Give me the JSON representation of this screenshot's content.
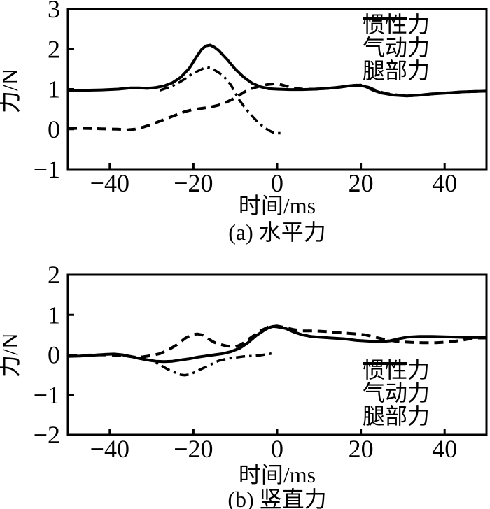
{
  "figure": {
    "line_color": "#000000",
    "background": "#ffffff",
    "ylabel": "力/N",
    "xlabel": "时间/ms"
  },
  "legend_styles": {
    "solid": {
      "dash": "",
      "width": 4
    },
    "dashed": {
      "dash": "13 8",
      "width": 4
    },
    "dashdot": {
      "dash": "13 6 3.5 6",
      "width": 3.5
    }
  },
  "chart_data": [
    {
      "type": "line",
      "title": "(a) 水平力",
      "xlabel": "时间/ms",
      "ylabel": "力/N",
      "xlim": [
        -50,
        50
      ],
      "ylim": [
        -1,
        3
      ],
      "xticks": [
        -40,
        -20,
        0,
        20,
        40
      ],
      "yticks": [
        -1,
        0,
        1,
        2,
        3
      ],
      "grid": false,
      "legend_position": "top-right",
      "series": [
        {
          "name": "惯性力",
          "style": "solid",
          "points": [
            [
              -50,
              0.97
            ],
            [
              -46,
              0.97
            ],
            [
              -42,
              0.98
            ],
            [
              -38,
              1.0
            ],
            [
              -35,
              1.03
            ],
            [
              -33,
              1.03
            ],
            [
              -31,
              1.02
            ],
            [
              -29,
              1.04
            ],
            [
              -27,
              1.08
            ],
            [
              -25,
              1.16
            ],
            [
              -23,
              1.3
            ],
            [
              -21,
              1.52
            ],
            [
              -19,
              1.85
            ],
            [
              -18,
              2.0
            ],
            [
              -17,
              2.08
            ],
            [
              -16,
              2.1
            ],
            [
              -15,
              2.05
            ],
            [
              -14,
              1.97
            ],
            [
              -12,
              1.75
            ],
            [
              -10,
              1.5
            ],
            [
              -8,
              1.3
            ],
            [
              -6,
              1.15
            ],
            [
              -4,
              1.06
            ],
            [
              -2,
              1.01
            ],
            [
              0,
              1.0
            ],
            [
              3,
              0.99
            ],
            [
              6,
              0.99
            ],
            [
              9,
              1.0
            ],
            [
              12,
              1.02
            ],
            [
              15,
              1.05
            ],
            [
              17,
              1.08
            ],
            [
              19,
              1.1
            ],
            [
              21,
              1.07
            ],
            [
              23,
              0.97
            ],
            [
              25,
              0.9
            ],
            [
              28,
              0.85
            ],
            [
              31,
              0.83
            ],
            [
              34,
              0.85
            ],
            [
              37,
              0.88
            ],
            [
              40,
              0.9
            ],
            [
              44,
              0.93
            ],
            [
              47,
              0.94
            ],
            [
              50,
              0.95
            ]
          ]
        },
        {
          "name": "气动力",
          "style": "dashed",
          "points": [
            [
              -50,
              0.02
            ],
            [
              -46,
              0.02
            ],
            [
              -42,
              0.01
            ],
            [
              -38,
              0.0
            ],
            [
              -36,
              -0.02
            ],
            [
              -34,
              0.0
            ],
            [
              -32,
              0.05
            ],
            [
              -30,
              0.12
            ],
            [
              -28,
              0.2
            ],
            [
              -26,
              0.28
            ],
            [
              -24,
              0.36
            ],
            [
              -22,
              0.44
            ],
            [
              -20,
              0.49
            ],
            [
              -18,
              0.52
            ],
            [
              -16,
              0.55
            ],
            [
              -14,
              0.6
            ],
            [
              -12,
              0.68
            ],
            [
              -10,
              0.78
            ],
            [
              -8,
              0.92
            ],
            [
              -6,
              1.02
            ],
            [
              -4,
              1.08
            ],
            [
              -2,
              1.12
            ],
            [
              0,
              1.14
            ],
            [
              2,
              1.08
            ],
            [
              4,
              1.03
            ],
            [
              6,
              1.0
            ],
            [
              9,
              1.0
            ],
            [
              12,
              1.02
            ],
            [
              15,
              1.05
            ],
            [
              18,
              1.09
            ],
            [
              20,
              1.1
            ],
            [
              22,
              1.04
            ],
            [
              24,
              0.95
            ],
            [
              26,
              0.89
            ],
            [
              29,
              0.85
            ],
            [
              32,
              0.84
            ],
            [
              35,
              0.86
            ],
            [
              38,
              0.89
            ],
            [
              41,
              0.91
            ],
            [
              44,
              0.93
            ],
            [
              47,
              0.94
            ],
            [
              50,
              0.95
            ]
          ]
        },
        {
          "name": "腿部力",
          "style": "dashdot",
          "points": [
            [
              -28,
              0.97
            ],
            [
              -26,
              1.04
            ],
            [
              -24,
              1.13
            ],
            [
              -22,
              1.26
            ],
            [
              -20,
              1.4
            ],
            [
              -18,
              1.5
            ],
            [
              -17,
              1.55
            ],
            [
              -16,
              1.53
            ],
            [
              -15,
              1.48
            ],
            [
              -13,
              1.35
            ],
            [
              -11,
              1.1
            ],
            [
              -10,
              0.9
            ],
            [
              -9,
              0.72
            ],
            [
              -8,
              0.58
            ],
            [
              -7,
              0.45
            ],
            [
              -6,
              0.33
            ],
            [
              -5,
              0.22
            ],
            [
              -4,
              0.12
            ],
            [
              -3,
              0.04
            ],
            [
              -2,
              -0.03
            ],
            [
              -1,
              -0.08
            ],
            [
              0,
              -0.1
            ],
            [
              1,
              -0.1
            ]
          ]
        }
      ]
    },
    {
      "type": "line",
      "title": "(b) 竖直力",
      "xlabel": "时间/ms",
      "ylabel": "力/N",
      "xlim": [
        -50,
        50
      ],
      "ylim": [
        -2,
        2
      ],
      "xticks": [
        -40,
        -20,
        0,
        20,
        40
      ],
      "yticks": [
        -2,
        -1,
        0,
        1,
        2
      ],
      "grid": false,
      "legend_position": "bottom-right",
      "series": [
        {
          "name": "惯性力",
          "style": "solid",
          "points": [
            [
              -50,
              -0.04
            ],
            [
              -47,
              -0.03
            ],
            [
              -44,
              -0.01
            ],
            [
              -41,
              0.01
            ],
            [
              -39,
              0.02
            ],
            [
              -37,
              0.0
            ],
            [
              -35,
              -0.04
            ],
            [
              -33,
              -0.09
            ],
            [
              -31,
              -0.13
            ],
            [
              -29,
              -0.16
            ],
            [
              -27,
              -0.17
            ],
            [
              -25,
              -0.16
            ],
            [
              -23,
              -0.13
            ],
            [
              -21,
              -0.1
            ],
            [
              -19,
              -0.06
            ],
            [
              -17,
              -0.03
            ],
            [
              -15,
              0.0
            ],
            [
              -13,
              0.03
            ],
            [
              -11,
              0.08
            ],
            [
              -9,
              0.16
            ],
            [
              -7,
              0.3
            ],
            [
              -5,
              0.48
            ],
            [
              -3,
              0.62
            ],
            [
              -2,
              0.68
            ],
            [
              -1,
              0.71
            ],
            [
              0,
              0.7
            ],
            [
              2,
              0.66
            ],
            [
              4,
              0.57
            ],
            [
              6,
              0.5
            ],
            [
              8,
              0.46
            ],
            [
              10,
              0.44
            ],
            [
              13,
              0.42
            ],
            [
              16,
              0.4
            ],
            [
              19,
              0.36
            ],
            [
              22,
              0.34
            ],
            [
              25,
              0.33
            ],
            [
              27,
              0.35
            ],
            [
              29,
              0.4
            ],
            [
              31,
              0.44
            ],
            [
              34,
              0.46
            ],
            [
              37,
              0.46
            ],
            [
              40,
              0.45
            ],
            [
              43,
              0.44
            ],
            [
              46,
              0.43
            ],
            [
              50,
              0.43
            ]
          ]
        },
        {
          "name": "气动力",
          "style": "dashed",
          "points": [
            [
              -50,
              -0.02
            ],
            [
              -46,
              -0.01
            ],
            [
              -42,
              0.0
            ],
            [
              -38,
              -0.01
            ],
            [
              -36,
              -0.03
            ],
            [
              -34,
              -0.06
            ],
            [
              -32,
              -0.05
            ],
            [
              -30,
              -0.02
            ],
            [
              -28,
              0.03
            ],
            [
              -26,
              0.12
            ],
            [
              -24,
              0.25
            ],
            [
              -23,
              0.33
            ],
            [
              -22,
              0.41
            ],
            [
              -21,
              0.47
            ],
            [
              -20,
              0.51
            ],
            [
              -19,
              0.52
            ],
            [
              -18,
              0.5
            ],
            [
              -17,
              0.44
            ],
            [
              -16,
              0.37
            ],
            [
              -15,
              0.31
            ],
            [
              -14,
              0.27
            ],
            [
              -12,
              0.22
            ],
            [
              -10,
              0.2
            ],
            [
              -9,
              0.24
            ],
            [
              -8,
              0.3
            ],
            [
              -6,
              0.45
            ],
            [
              -4,
              0.6
            ],
            [
              -2,
              0.7
            ],
            [
              0,
              0.72
            ],
            [
              2,
              0.68
            ],
            [
              4,
              0.63
            ],
            [
              6,
              0.6
            ],
            [
              9,
              0.6
            ],
            [
              12,
              0.58
            ],
            [
              15,
              0.55
            ],
            [
              18,
              0.53
            ],
            [
              21,
              0.5
            ],
            [
              23,
              0.45
            ],
            [
              25,
              0.4
            ],
            [
              27,
              0.36
            ],
            [
              29,
              0.33
            ],
            [
              32,
              0.31
            ],
            [
              35,
              0.3
            ],
            [
              38,
              0.3
            ],
            [
              41,
              0.32
            ],
            [
              44,
              0.36
            ],
            [
              46,
              0.4
            ],
            [
              48,
              0.42
            ],
            [
              50,
              0.42
            ]
          ]
        },
        {
          "name": "腿部力",
          "style": "dashdot",
          "points": [
            [
              -32,
              -0.1
            ],
            [
              -30,
              -0.15
            ],
            [
              -28,
              -0.25
            ],
            [
              -26,
              -0.37
            ],
            [
              -24,
              -0.46
            ],
            [
              -23,
              -0.5
            ],
            [
              -22,
              -0.51
            ],
            [
              -21,
              -0.49
            ],
            [
              -20,
              -0.45
            ],
            [
              -18,
              -0.35
            ],
            [
              -16,
              -0.25
            ],
            [
              -14,
              -0.15
            ],
            [
              -12,
              -0.1
            ],
            [
              -10,
              -0.07
            ],
            [
              -8,
              -0.04
            ],
            [
              -6,
              -0.03
            ],
            [
              -4,
              -0.01
            ],
            [
              -2,
              0.02
            ],
            [
              -1,
              0.04
            ]
          ]
        }
      ]
    }
  ]
}
